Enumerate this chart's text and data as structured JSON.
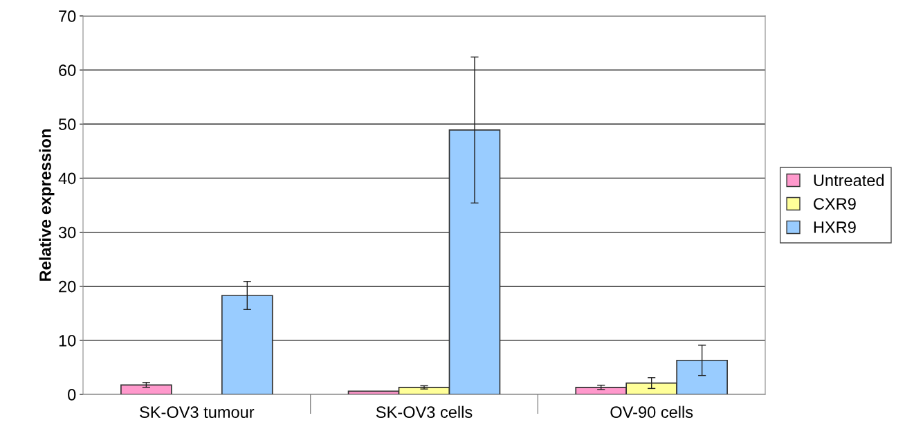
{
  "chart_data": {
    "type": "bar",
    "ylabel": "Relative expression",
    "categories": [
      "SK-OV3 tumour",
      "SK-OV3 cells",
      "OV-90 cells"
    ],
    "series": [
      {
        "name": "Untreated",
        "color": "#ff99cc",
        "values": [
          1.75,
          0.6,
          1.3
        ],
        "errors": [
          0.45,
          null,
          0.4
        ]
      },
      {
        "name": "CXR9",
        "color": "#ffff99",
        "values": [
          null,
          1.3,
          2.1
        ],
        "errors": [
          null,
          0.3,
          1.0
        ]
      },
      {
        "name": "HXR9",
        "color": "#99ccff",
        "values": [
          18.3,
          48.9,
          6.3
        ],
        "errors": [
          2.6,
          13.5,
          2.8
        ]
      }
    ],
    "ylim": [
      0,
      70
    ],
    "yticks": [
      0,
      10,
      20,
      30,
      40,
      50,
      60,
      70
    ],
    "grid": "y",
    "legend": "right"
  }
}
